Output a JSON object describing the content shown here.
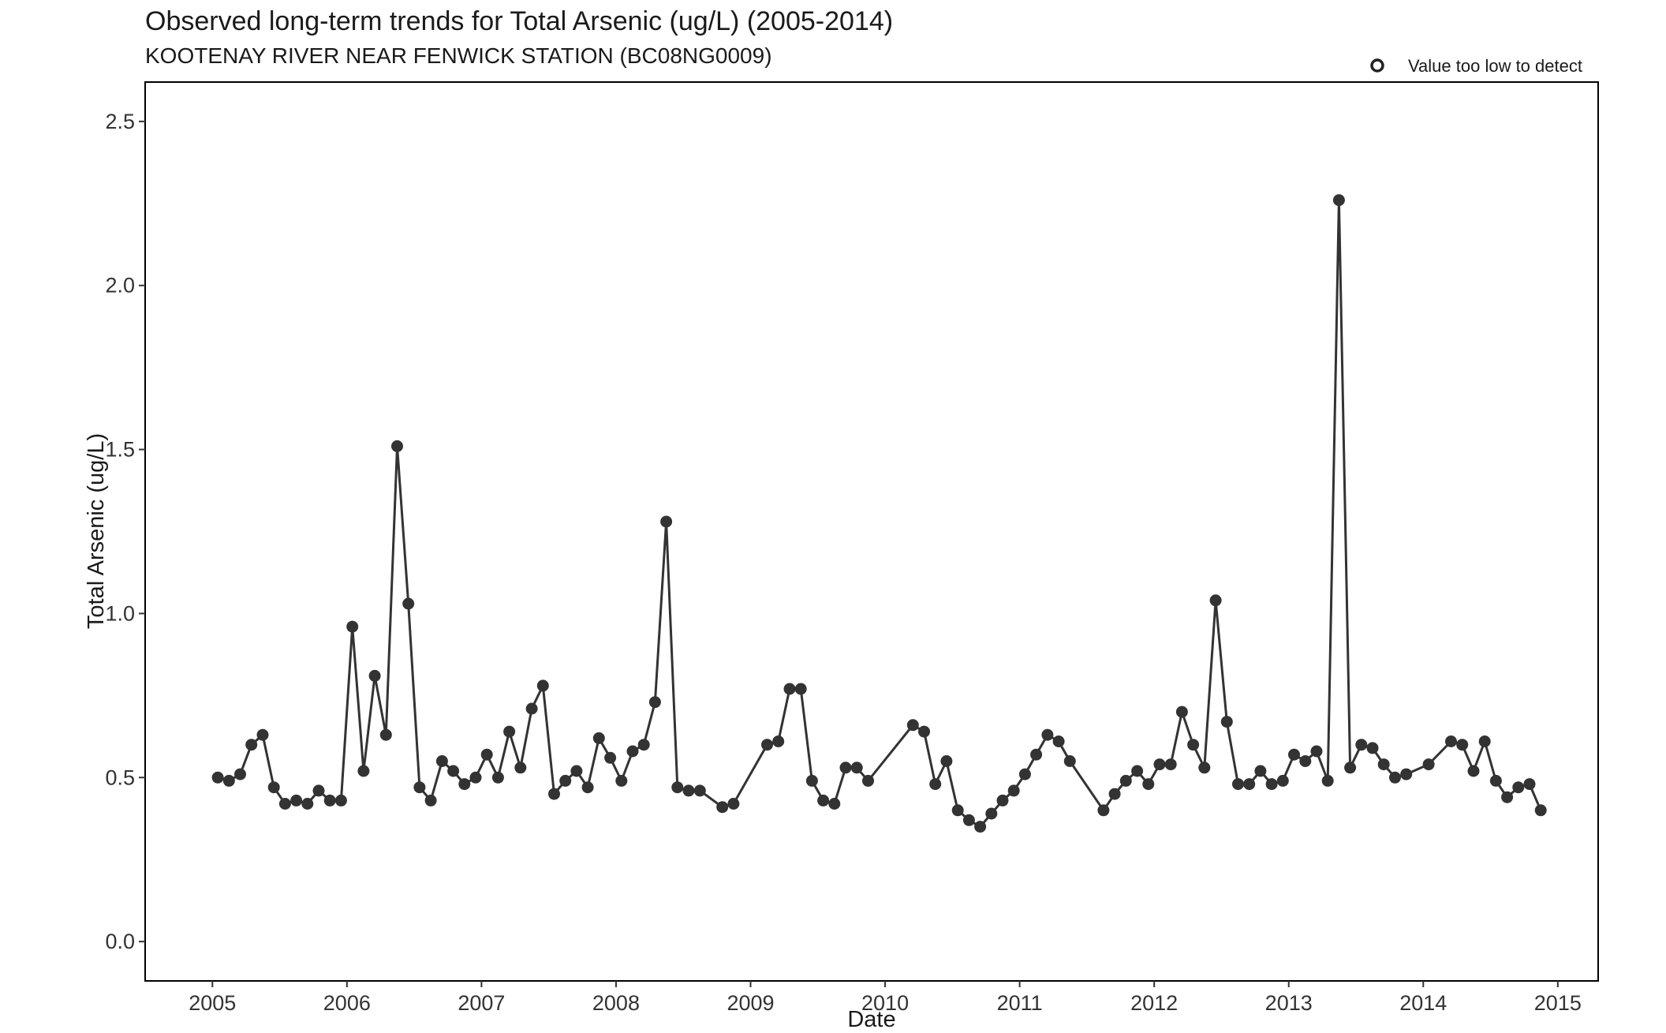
{
  "chart_data": {
    "type": "line",
    "title": "Observed long-term trends for Total Arsenic (ug/L) (2005-2014)",
    "subtitle": "KOOTENAY RIVER NEAR FENWICK STATION (BC08NG0009)",
    "xlabel": "Date",
    "ylabel": "Total Arsenic (ug/L)",
    "xlim": [
      2004.5,
      2015.3
    ],
    "ylim": [
      -0.12,
      2.62
    ],
    "x_ticks": [
      "2005",
      "2006",
      "2007",
      "2008",
      "2009",
      "2010",
      "2011",
      "2012",
      "2013",
      "2014",
      "2015"
    ],
    "y_ticks": [
      "0.0",
      "0.5",
      "1.0",
      "1.5",
      "2.0",
      "2.5"
    ],
    "grid": false,
    "legend": {
      "position": "top-right",
      "entries": [
        {
          "label": "Value too low to detect",
          "marker": "open-circle"
        }
      ]
    },
    "colors": {
      "series": "#333333",
      "axis": "#000000"
    },
    "series": [
      {
        "x": [
          "2005-01",
          "2005-02",
          "2005-03",
          "2005-04",
          "2005-05",
          "2005-06",
          "2005-07",
          "2005-08",
          "2005-09",
          "2005-10",
          "2005-11",
          "2005-12",
          "2006-01",
          "2006-02",
          "2006-03",
          "2006-04",
          "2006-05",
          "2006-06",
          "2006-07",
          "2006-08",
          "2006-09",
          "2006-10",
          "2006-11",
          "2006-12",
          "2007-01",
          "2007-02",
          "2007-03",
          "2007-04",
          "2007-05",
          "2007-06",
          "2007-07",
          "2007-08",
          "2007-09",
          "2007-10",
          "2007-11",
          "2007-12",
          "2008-01",
          "2008-02",
          "2008-03",
          "2008-04",
          "2008-05",
          "2008-06",
          "2008-07",
          "2008-08",
          "2008-10",
          "2008-11",
          "2009-02",
          "2009-03",
          "2009-04",
          "2009-05",
          "2009-06",
          "2009-07",
          "2009-08",
          "2009-09",
          "2009-10",
          "2009-11",
          "2010-03",
          "2010-04",
          "2010-05",
          "2010-06",
          "2010-07",
          "2010-08",
          "2010-09",
          "2010-10",
          "2010-11",
          "2010-12",
          "2011-01",
          "2011-02",
          "2011-03",
          "2011-04",
          "2011-05",
          "2011-08",
          "2011-09",
          "2011-10",
          "2011-11",
          "2011-12",
          "2012-01",
          "2012-02",
          "2012-03",
          "2012-04",
          "2012-05",
          "2012-06",
          "2012-07",
          "2012-08",
          "2012-09",
          "2012-10",
          "2012-11",
          "2012-12",
          "2013-01",
          "2013-02",
          "2013-03",
          "2013-04",
          "2013-05",
          "2013-06",
          "2013-07",
          "2013-08",
          "2013-09",
          "2013-10",
          "2013-11",
          "2014-01",
          "2014-03",
          "2014-04",
          "2014-05",
          "2014-06",
          "2014-07",
          "2014-08",
          "2014-09",
          "2014-10",
          "2014-11"
        ],
        "y": [
          0.5,
          0.49,
          0.51,
          0.6,
          0.63,
          0.47,
          0.42,
          0.43,
          0.42,
          0.46,
          0.43,
          0.43,
          0.96,
          0.52,
          0.81,
          0.63,
          1.51,
          1.03,
          0.47,
          0.43,
          0.55,
          0.52,
          0.48,
          0.5,
          0.57,
          0.5,
          0.64,
          0.53,
          0.71,
          0.78,
          0.45,
          0.49,
          0.52,
          0.47,
          0.62,
          0.56,
          0.49,
          0.58,
          0.6,
          0.73,
          1.28,
          0.47,
          0.46,
          0.46,
          0.41,
          0.42,
          0.6,
          0.61,
          0.77,
          0.77,
          0.49,
          0.43,
          0.42,
          0.53,
          0.53,
          0.49,
          0.66,
          0.64,
          0.48,
          0.55,
          0.4,
          0.37,
          0.35,
          0.39,
          0.43,
          0.46,
          0.51,
          0.57,
          0.63,
          0.61,
          0.55,
          0.4,
          0.45,
          0.49,
          0.52,
          0.48,
          0.54,
          0.54,
          0.7,
          0.6,
          0.53,
          1.04,
          0.67,
          0.48,
          0.48,
          0.52,
          0.48,
          0.49,
          0.57,
          0.55,
          0.58,
          0.49,
          2.26,
          0.53,
          0.6,
          0.59,
          0.54,
          0.5,
          0.51,
          0.54,
          0.61,
          0.6,
          0.52,
          0.61,
          0.49,
          0.44,
          0.47,
          0.48,
          0.4
        ]
      }
    ]
  }
}
